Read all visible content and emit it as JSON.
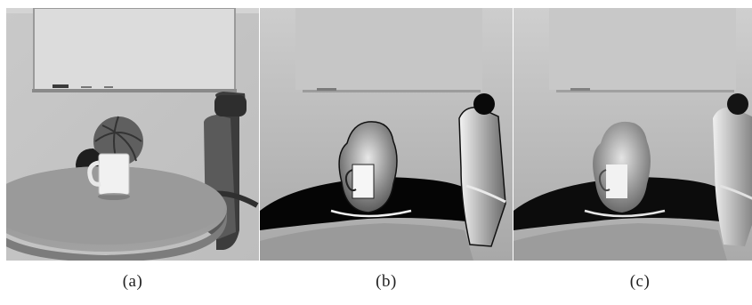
{
  "figure": {
    "panels": [
      {
        "id": "a",
        "label": "(a)"
      },
      {
        "id": "b",
        "label": "(b)"
      },
      {
        "id": "c",
        "label": "(c)"
      }
    ]
  }
}
